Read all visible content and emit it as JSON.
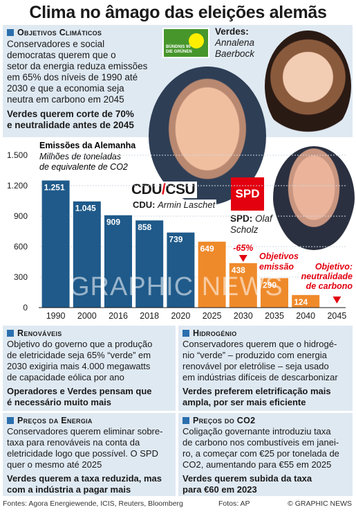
{
  "title": "Clima no âmago das eleições alemãs",
  "climate": {
    "heading": "Objetivos Climáticos",
    "body": [
      "Conservadores e social",
      "democratas querem que o",
      "setor da energia reduza emissões",
      "em 65% dos níveis de 1990 até",
      "2030 e que a economia seja",
      "neutra em carbono em 2045"
    ],
    "highlight": [
      "Verdes querem corte de 70%",
      "e neutralidade antes de 2045"
    ]
  },
  "parties": {
    "greens_logo": [
      "BÜNDNIS 90",
      "DIE GRÜNEN"
    ],
    "greens_label": "Verdes:",
    "greens_name": [
      "Annalena",
      "Baerbock"
    ],
    "cdu_logo": "CDU",
    "csu_logo": "CSU",
    "cdu_label": "CDU:",
    "cdu_name": "Armin Laschet",
    "spd_logo": "SPD",
    "spd_label": "SPD:",
    "spd_name": [
      "Olaf",
      "Scholz"
    ]
  },
  "chart_data": {
    "type": "bar",
    "title": "Emissões da Alemanha",
    "subtitle": [
      "Milhões de toneladas",
      "de equivalente de CO2"
    ],
    "categories": [
      "1990",
      "2000",
      "2016",
      "2018",
      "2020",
      "2025",
      "2030",
      "2035",
      "2040",
      "2045"
    ],
    "values": [
      1251,
      1045,
      909,
      858,
      739,
      649,
      438,
      290,
      124,
      0
    ],
    "labels": [
      "1.251",
      "1.045",
      "909",
      "858",
      "739",
      "649",
      "438",
      "290",
      "124",
      ""
    ],
    "yticks": [
      0,
      300,
      600,
      900,
      1200,
      1500
    ],
    "ytick_labels": [
      "0",
      "300",
      "600",
      "900",
      "1.200",
      "1.500"
    ],
    "ylim": [
      0,
      1500
    ],
    "colors": {
      "historic": "#1f5a8a",
      "target": "#ef8a2b"
    },
    "annotations": {
      "pct": "-65%",
      "target_emission": [
        "Objetivos",
        "emissão"
      ],
      "target_neutral": [
        "Objetivo:",
        "neutralidade",
        "de carbono"
      ]
    }
  },
  "renewables": {
    "heading": "Renováveis",
    "body": [
      "Objetivo do governo que a produção",
      "de eletricidade seja 65% “verde” em",
      "2030 exigiria mais 4.000 megawatts",
      "de capacidade eólica por ano"
    ],
    "highlight": [
      "Operadores e Verdes pensam que",
      "é necessário muito mais"
    ]
  },
  "hydrogen": {
    "heading": "Hidrogénio",
    "body": [
      "Conservadores querem que o hidrogé-",
      "nio “verde” – produzido com energia",
      "renovável por eletrólise – seja usado",
      "em indústrias difíceis de descarbonizar"
    ],
    "highlight": [
      "Verdes preferem eletrificação mais",
      "ampla, por ser mais eficiente"
    ]
  },
  "energy_prices": {
    "heading": "Preços da Energia",
    "body": [
      "Conservadores querem eliminar sobre-",
      "taxa para renováveis na conta da",
      "eletricidade logo que possível. O SPD",
      "quer o mesmo até 2025"
    ],
    "highlight": [
      "Verdes querem a taxa reduzida, mas",
      "com a indústria a pagar mais"
    ]
  },
  "co2_prices": {
    "heading": "Preços do CO2",
    "body": [
      "Coligação governante introduziu taxa",
      "de carbono nos combustíveis em janei-",
      "ro, a começar com €25 por tonelada de",
      "CO2, aumentando para €55 em 2025"
    ],
    "highlight": [
      "Verdes querem subida da taxa",
      "para €60 em 2023"
    ]
  },
  "watermark": "GRAPHIC NEWS",
  "footer": {
    "sources": "Fontes: Agora Energiewende, ICIS, Reuters, Bloomberg",
    "photos": "Fotos: AP",
    "copyright": "© GRAPHIC NEWS"
  }
}
